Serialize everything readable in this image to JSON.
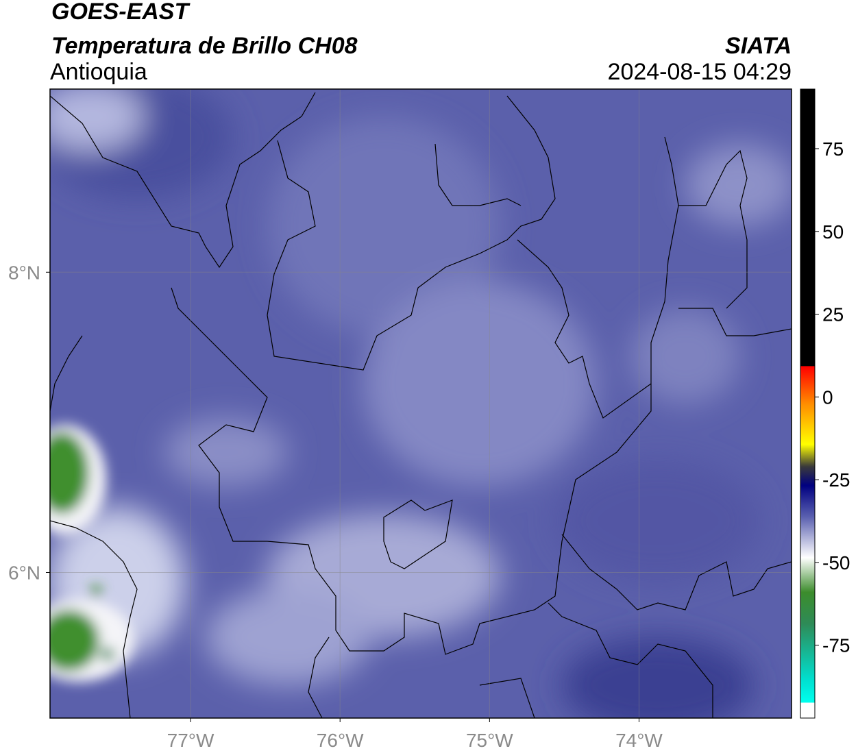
{
  "header": {
    "title": "GOES-EAST",
    "subtitle": "Temperatura de Brillo CH08",
    "region": "Antioquia",
    "source": "SIATA",
    "datetime": "2024-08-15 04:29"
  },
  "map": {
    "lonlim": [
      -77.94,
      -72.98
    ],
    "latlim": [
      5.03,
      9.22
    ],
    "grid": true,
    "lonticks": [
      {
        "value": -77,
        "label": "77°W"
      },
      {
        "value": -76,
        "label": "76°W"
      },
      {
        "value": -75,
        "label": "75°W"
      },
      {
        "value": -74,
        "label": "74°W"
      }
    ],
    "latticks": [
      {
        "value": 8,
        "label": "8°N"
      },
      {
        "value": 6,
        "label": "6°N"
      }
    ]
  },
  "colorbar": {
    "lim": [
      -97,
      93
    ],
    "ticks": [
      75,
      50,
      25,
      0,
      -25,
      -50,
      -75
    ]
  }
}
